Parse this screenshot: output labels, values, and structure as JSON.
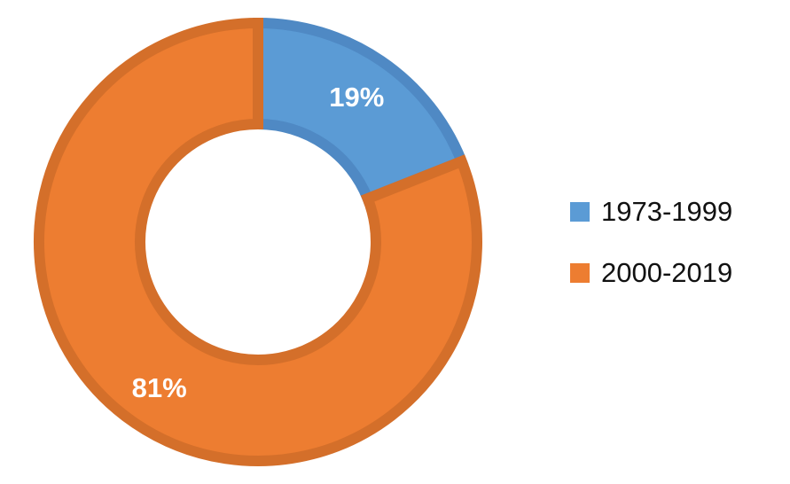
{
  "chart_data": {
    "type": "pie",
    "variant": "donut",
    "categories": [
      "1973-1999",
      "2000-2019"
    ],
    "values": [
      19,
      81
    ],
    "data_labels": [
      "19%",
      "81%"
    ],
    "colors": [
      "#5B9BD5",
      "#ED7D31"
    ],
    "border_colors": [
      "#4F89C4",
      "#D46F2A"
    ],
    "legend_placement": "right",
    "start_angle_deg": 0,
    "direction": "clockwise"
  }
}
